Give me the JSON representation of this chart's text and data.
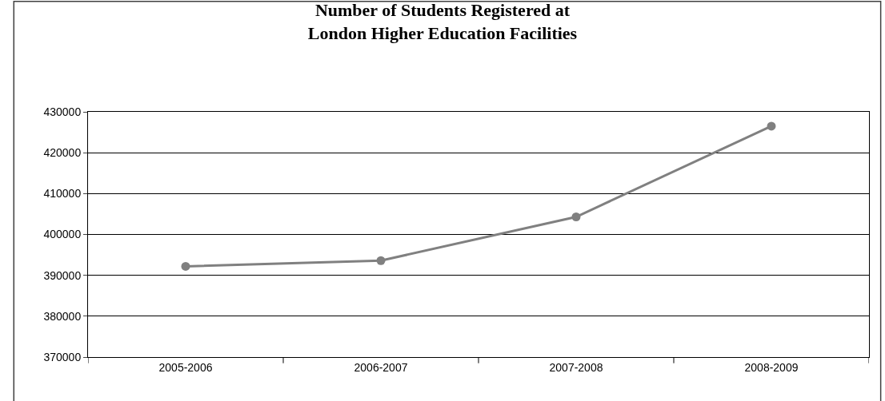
{
  "chart_data": {
    "type": "line",
    "title": "Number of Students Registered at\nLondon Higher Education Facilities",
    "categories": [
      "2005-2006",
      "2006-2007",
      "2007-2008",
      "2008-2009"
    ],
    "series": [
      {
        "color": "#808080",
        "values": [
          392200,
          393600,
          404300,
          426500
        ]
      }
    ],
    "ylim": [
      370000,
      430000
    ],
    "yticks": [
      370000,
      380000,
      390000,
      400000,
      410000,
      420000,
      430000
    ],
    "grid": "y",
    "marker": "circle",
    "line_style": "solid"
  }
}
